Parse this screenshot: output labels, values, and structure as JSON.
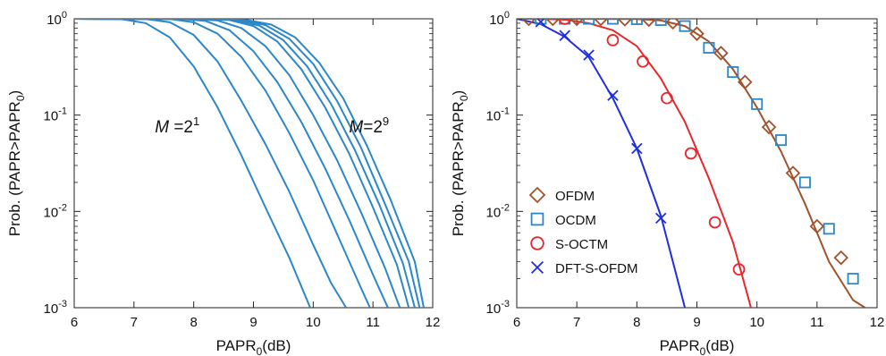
{
  "chart_data": [
    {
      "type": "line",
      "xlabel": "PAPR",
      "xlabel_sub": "0",
      "xlabel_unit": "(dB)",
      "ylabel": "Prob. (PAPR>PAPR",
      "ylabel_sub": "0",
      "ylabel_end": ")",
      "xlim": [
        6,
        12
      ],
      "ylim": [
        0.001,
        1
      ],
      "yscale": "log",
      "xticks": [
        "6",
        "7",
        "8",
        "9",
        "10",
        "11",
        "12"
      ],
      "yticks": [
        {
          "base": "10",
          "exp": "0",
          "value": 1
        },
        {
          "base": "10",
          "exp": "-1",
          "value": 0.1
        },
        {
          "base": "10",
          "exp": "-2",
          "value": 0.01
        },
        {
          "base": "10",
          "exp": "-3",
          "value": 0.001
        }
      ],
      "color": "#2b87c8",
      "annotations": [
        {
          "prefix": "M",
          "text": " =2",
          "sup": "1",
          "x": 7.35,
          "y": 0.066
        },
        {
          "prefix": "M",
          "text": "=2",
          "sup": "9",
          "x": 10.6,
          "y": 0.066
        }
      ],
      "series": [
        {
          "x": [
            6.0,
            6.8,
            7.2,
            7.6,
            8.0,
            8.4,
            8.8,
            9.2,
            9.6,
            9.95
          ],
          "y": [
            1.0,
            0.99,
            0.9,
            0.64,
            0.32,
            0.12,
            0.038,
            0.011,
            0.0033,
            0.001
          ]
        },
        {
          "x": [
            6.0,
            7.2,
            7.6,
            8.0,
            8.4,
            8.8,
            9.2,
            9.6,
            10.0,
            10.3,
            10.55
          ],
          "y": [
            1.0,
            0.995,
            0.92,
            0.68,
            0.36,
            0.14,
            0.05,
            0.016,
            0.0045,
            0.0018,
            0.001
          ]
        },
        {
          "x": [
            6.0,
            7.6,
            8.0,
            8.4,
            8.8,
            9.2,
            9.6,
            10.0,
            10.4,
            10.8,
            10.95
          ],
          "y": [
            1.0,
            0.995,
            0.92,
            0.7,
            0.4,
            0.18,
            0.065,
            0.021,
            0.0058,
            0.0016,
            0.001
          ]
        },
        {
          "x": [
            6.0,
            7.8,
            8.2,
            8.6,
            9.0,
            9.4,
            9.8,
            10.2,
            10.6,
            11.0,
            11.25
          ],
          "y": [
            1.0,
            0.995,
            0.95,
            0.76,
            0.46,
            0.22,
            0.085,
            0.028,
            0.0082,
            0.0022,
            0.001
          ]
        },
        {
          "x": [
            6.0,
            8.0,
            8.4,
            8.8,
            9.2,
            9.6,
            10.0,
            10.4,
            10.8,
            11.2,
            11.45
          ],
          "y": [
            1.0,
            0.995,
            0.96,
            0.8,
            0.52,
            0.26,
            0.1,
            0.034,
            0.0098,
            0.0026,
            0.001
          ]
        },
        {
          "x": [
            6.0,
            8.2,
            8.6,
            9.0,
            9.4,
            9.8,
            10.2,
            10.6,
            11.0,
            11.4,
            11.6
          ],
          "y": [
            1.0,
            0.995,
            0.97,
            0.84,
            0.58,
            0.3,
            0.12,
            0.04,
            0.011,
            0.0028,
            0.001
          ]
        },
        {
          "x": [
            6.0,
            8.3,
            8.7,
            9.1,
            9.5,
            9.9,
            10.3,
            10.7,
            11.1,
            11.5,
            11.7
          ],
          "y": [
            1.0,
            0.995,
            0.97,
            0.85,
            0.6,
            0.32,
            0.13,
            0.043,
            0.012,
            0.0029,
            0.001
          ]
        },
        {
          "x": [
            6.0,
            8.4,
            8.8,
            9.2,
            9.6,
            10.0,
            10.4,
            10.8,
            11.2,
            11.6,
            11.78
          ],
          "y": [
            1.0,
            0.995,
            0.97,
            0.86,
            0.62,
            0.34,
            0.14,
            0.046,
            0.012,
            0.003,
            0.001
          ]
        },
        {
          "x": [
            6.0,
            8.5,
            8.9,
            9.3,
            9.7,
            10.1,
            10.5,
            10.9,
            11.3,
            11.7,
            11.85
          ],
          "y": [
            1.0,
            0.995,
            0.97,
            0.87,
            0.64,
            0.35,
            0.15,
            0.048,
            0.013,
            0.003,
            0.001
          ]
        }
      ]
    },
    {
      "type": "line",
      "xlabel": "PAPR",
      "xlabel_sub": "0",
      "xlabel_unit": "(dB)",
      "ylabel": "Prob. (PAPR>PAPR",
      "ylabel_sub": "0",
      "ylabel_end": ")",
      "xlim": [
        6,
        12
      ],
      "ylim": [
        0.001,
        1
      ],
      "yscale": "log",
      "xticks": [
        "6",
        "7",
        "8",
        "9",
        "10",
        "11",
        "12"
      ],
      "yticks": [
        {
          "base": "10",
          "exp": "0",
          "value": 1
        },
        {
          "base": "10",
          "exp": "-1",
          "value": 0.1
        },
        {
          "base": "10",
          "exp": "-2",
          "value": 0.01
        },
        {
          "base": "10",
          "exp": "-3",
          "value": 0.001
        }
      ],
      "legend": {
        "position": "lower-left"
      },
      "series": [
        {
          "name": "OFDM",
          "color": "#a0522d",
          "marker": "diamond",
          "x": [
            6.0,
            8.0,
            8.4,
            8.8,
            9.2,
            9.6,
            10.0,
            10.4,
            10.8,
            11.2,
            11.6,
            11.8
          ],
          "y": [
            1.0,
            0.995,
            0.96,
            0.84,
            0.58,
            0.3,
            0.12,
            0.042,
            0.012,
            0.003,
            0.0012,
            0.001
          ],
          "marker_x": [
            6.2,
            6.6,
            7.0,
            7.4,
            7.8,
            8.2,
            8.6,
            9.0,
            9.4,
            9.8,
            10.2,
            10.6,
            11.0,
            11.4
          ],
          "marker_y": [
            1.0,
            1.0,
            1.0,
            1.0,
            0.99,
            0.98,
            0.92,
            0.7,
            0.44,
            0.22,
            0.075,
            0.025,
            0.007,
            0.0033
          ]
        },
        {
          "name": "OCDM",
          "color": "#2b87c8",
          "marker": "square",
          "marker_x": [
            6.4,
            6.8,
            7.2,
            7.6,
            8.0,
            8.4,
            8.8,
            9.2,
            9.6,
            10.0,
            10.4,
            10.8,
            11.2,
            11.6
          ],
          "marker_y": [
            1.0,
            1.0,
            1.0,
            1.0,
            0.99,
            0.97,
            0.84,
            0.5,
            0.28,
            0.13,
            0.055,
            0.02,
            0.0066,
            0.002
          ]
        },
        {
          "name": "S-OCTM",
          "color": "#e8262b",
          "marker": "circle",
          "x": [
            6.0,
            6.4,
            6.8,
            7.2,
            7.6,
            8.0,
            8.4,
            8.8,
            9.2,
            9.6,
            9.9
          ],
          "y": [
            1.0,
            1.0,
            0.98,
            0.9,
            0.76,
            0.52,
            0.24,
            0.085,
            0.022,
            0.0048,
            0.001
          ],
          "marker_x": [
            6.8,
            7.6,
            8.1,
            8.5,
            8.9,
            9.3,
            9.7
          ],
          "marker_y": [
            1.0,
            0.6,
            0.36,
            0.15,
            0.04,
            0.0077,
            0.0025
          ]
        },
        {
          "name": "DFT-S-OFDM",
          "color": "#1f2ee0",
          "marker": "x",
          "x": [
            6.0,
            6.4,
            6.8,
            7.2,
            7.6,
            8.0,
            8.4,
            8.8
          ],
          "y": [
            1.0,
            0.88,
            0.65,
            0.4,
            0.15,
            0.045,
            0.009,
            0.001
          ],
          "marker_x": [
            6.4,
            6.8,
            7.2,
            7.6,
            8.0,
            8.4
          ],
          "marker_y": [
            0.93,
            0.67,
            0.42,
            0.16,
            0.045,
            0.0085
          ]
        }
      ]
    }
  ]
}
